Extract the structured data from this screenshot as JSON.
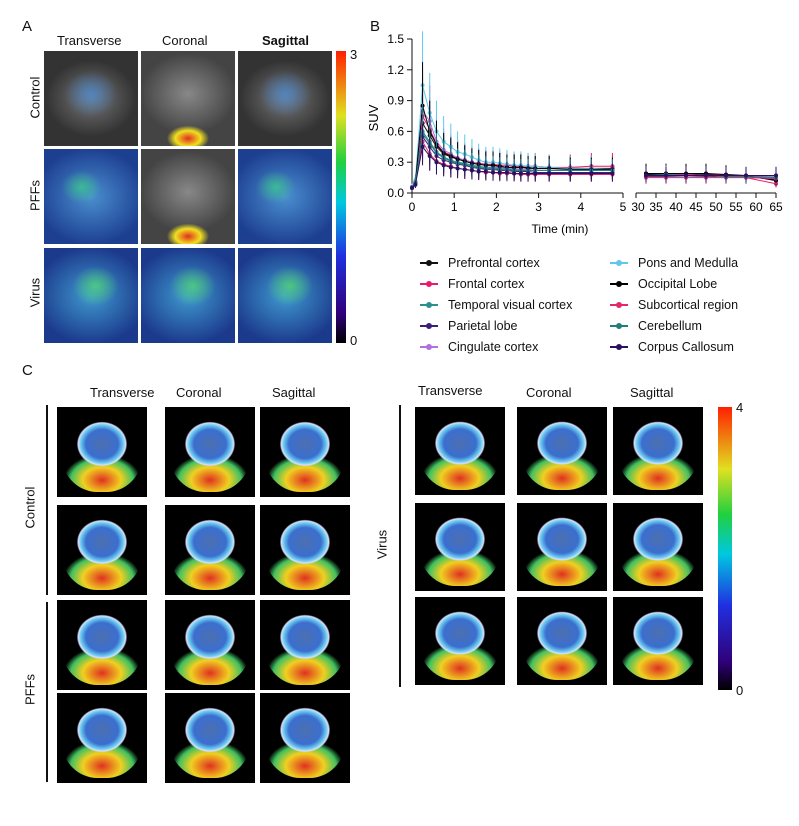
{
  "panels": {
    "a": "A",
    "b": "B",
    "c": "C"
  },
  "panel_a": {
    "columns": [
      "Transverse",
      "Coronal",
      "Sagittal"
    ],
    "rows": [
      "Control",
      "PFFs",
      "Virus"
    ],
    "colorbar": {
      "max": "3",
      "min": "0"
    }
  },
  "panel_c": {
    "left": {
      "columns": [
        "Transverse",
        "Coronal",
        "Sagittal"
      ],
      "groups": [
        "Control",
        "PFFs"
      ]
    },
    "right": {
      "columns": [
        "Transverse",
        "Coronal",
        "Sagittal"
      ],
      "groups": [
        "Virus"
      ]
    },
    "colorbar": {
      "max": "4",
      "min": "0"
    }
  },
  "chart_data": {
    "type": "line",
    "xlabel": "Time (min)",
    "ylabel": "SUV",
    "ylim": [
      0,
      1.5
    ],
    "yticks": [
      "0.0",
      "0.3",
      "0.6",
      "0.9",
      "1.2",
      "1.5"
    ],
    "xticks_early": [
      "0",
      "1",
      "2",
      "3",
      "4",
      "5"
    ],
    "xticks_late": [
      "30",
      "35",
      "40",
      "45",
      "50",
      "55",
      "60",
      "65"
    ],
    "x": [
      0,
      0.08,
      0.25,
      0.42,
      0.58,
      0.75,
      0.92,
      1.08,
      1.25,
      1.42,
      1.58,
      1.75,
      1.92,
      2.08,
      2.25,
      2.42,
      2.58,
      2.75,
      2.92,
      3.25,
      3.75,
      4.25,
      4.75,
      32.5,
      37.5,
      42.5,
      47.5,
      52.5,
      57.5,
      65
    ],
    "series": [
      {
        "name": "Prefrontal cortex",
        "color": "#111111",
        "values": [
          0.06,
          0.1,
          0.68,
          0.56,
          0.45,
          0.38,
          0.35,
          0.33,
          0.31,
          0.29,
          0.28,
          0.27,
          0.27,
          0.26,
          0.25,
          0.25,
          0.25,
          0.25,
          0.24,
          0.24,
          0.24,
          0.24,
          0.24,
          0.18,
          0.18,
          0.17,
          0.18,
          0.17,
          0.16,
          0.13
        ]
      },
      {
        "name": "Frontal cortex",
        "color": "#e8196e",
        "values": [
          0.05,
          0.1,
          0.75,
          0.62,
          0.48,
          0.4,
          0.37,
          0.34,
          0.32,
          0.3,
          0.29,
          0.28,
          0.28,
          0.27,
          0.27,
          0.26,
          0.26,
          0.26,
          0.26,
          0.25,
          0.25,
          0.26,
          0.26,
          0.19,
          0.19,
          0.18,
          0.19,
          0.17,
          0.15,
          0.09
        ]
      },
      {
        "name": "Temporal visual cortex",
        "color": "#2a8f8f",
        "values": [
          0.05,
          0.1,
          0.6,
          0.5,
          0.4,
          0.35,
          0.32,
          0.3,
          0.29,
          0.27,
          0.26,
          0.25,
          0.25,
          0.24,
          0.23,
          0.23,
          0.22,
          0.22,
          0.22,
          0.22,
          0.22,
          0.22,
          0.22,
          0.17,
          0.17,
          0.17,
          0.17,
          0.16,
          0.16,
          0.15
        ]
      },
      {
        "name": "Parietal lobe",
        "color": "#3b1f7a",
        "values": [
          0.05,
          0.09,
          0.55,
          0.45,
          0.36,
          0.32,
          0.3,
          0.28,
          0.27,
          0.25,
          0.24,
          0.23,
          0.23,
          0.22,
          0.22,
          0.21,
          0.21,
          0.21,
          0.2,
          0.2,
          0.2,
          0.2,
          0.2,
          0.16,
          0.16,
          0.16,
          0.16,
          0.16,
          0.16,
          0.17
        ]
      },
      {
        "name": "Cingulate cortex",
        "color": "#b070e0",
        "values": [
          0.05,
          0.1,
          0.8,
          0.7,
          0.5,
          0.42,
          0.38,
          0.34,
          0.32,
          0.3,
          0.28,
          0.27,
          0.26,
          0.25,
          0.24,
          0.24,
          0.23,
          0.23,
          0.22,
          0.22,
          0.22,
          0.22,
          0.22,
          0.17,
          0.17,
          0.17,
          0.17,
          0.16,
          0.16,
          0.16
        ]
      },
      {
        "name": "Pons and Medulla",
        "color": "#5ec8ea",
        "values": [
          0.06,
          0.12,
          1.05,
          0.78,
          0.6,
          0.5,
          0.45,
          0.4,
          0.38,
          0.35,
          0.32,
          0.3,
          0.3,
          0.29,
          0.28,
          0.27,
          0.27,
          0.26,
          0.26,
          0.25,
          0.24,
          0.24,
          0.23,
          0.17,
          0.17,
          0.16,
          0.17,
          0.16,
          0.15,
          0.14
        ]
      },
      {
        "name": "Occipital Lobe",
        "color": "#000000",
        "values": [
          0.05,
          0.1,
          0.85,
          0.6,
          0.47,
          0.39,
          0.36,
          0.33,
          0.31,
          0.29,
          0.28,
          0.27,
          0.27,
          0.26,
          0.25,
          0.25,
          0.25,
          0.24,
          0.24,
          0.24,
          0.23,
          0.23,
          0.23,
          0.19,
          0.19,
          0.19,
          0.19,
          0.18,
          0.17,
          0.12
        ]
      },
      {
        "name": "Subcortical region",
        "color": "#e0286a",
        "values": [
          0.05,
          0.09,
          0.5,
          0.38,
          0.31,
          0.28,
          0.26,
          0.24,
          0.23,
          0.22,
          0.21,
          0.2,
          0.2,
          0.19,
          0.19,
          0.19,
          0.18,
          0.18,
          0.18,
          0.18,
          0.18,
          0.18,
          0.18,
          0.15,
          0.15,
          0.15,
          0.15,
          0.15,
          0.15,
          0.14
        ]
      },
      {
        "name": "Cerebellum",
        "color": "#1f7f7f",
        "values": [
          0.05,
          0.1,
          0.58,
          0.48,
          0.39,
          0.34,
          0.31,
          0.29,
          0.28,
          0.26,
          0.25,
          0.24,
          0.24,
          0.23,
          0.23,
          0.22,
          0.22,
          0.22,
          0.22,
          0.22,
          0.22,
          0.22,
          0.22,
          0.17,
          0.18,
          0.17,
          0.17,
          0.16,
          0.16,
          0.15
        ]
      },
      {
        "name": "Corpus Callosum",
        "color": "#2a1060",
        "values": [
          0.05,
          0.08,
          0.45,
          0.36,
          0.3,
          0.27,
          0.25,
          0.24,
          0.23,
          0.22,
          0.21,
          0.21,
          0.2,
          0.2,
          0.2,
          0.19,
          0.19,
          0.19,
          0.19,
          0.19,
          0.19,
          0.19,
          0.19,
          0.17,
          0.17,
          0.17,
          0.17,
          0.17,
          0.17,
          0.17
        ]
      }
    ],
    "legend_placement": "bottom"
  }
}
